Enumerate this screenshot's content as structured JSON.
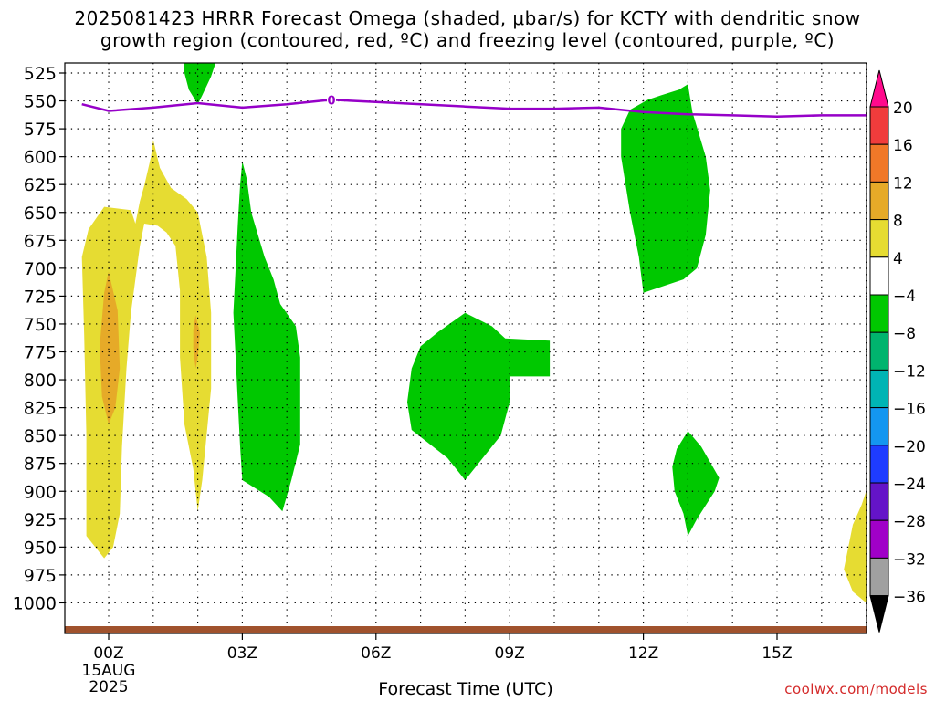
{
  "title_line1": "2025081423 HRRR Forecast Omega (shaded, μbar/s) for KCTY with dendritic snow",
  "title_line2": "growth region (contoured, red, ºC) and freezing level (contoured, purple, ºC)",
  "credit": "coolwx.com/models",
  "chart_data": {
    "type": "heatmap",
    "title": "2025081423 HRRR Forecast Omega (shaded, μbar/s) for KCTY with dendritic snow growth region (contoured, red, ºC) and freezing level (contoured, purple, ºC)",
    "xlabel": "Forecast Time (UTC)",
    "ylabel": "",
    "x_unit": "forecast hour from 00Z 15AUG2025",
    "x_range": [
      -0.6,
      17
    ],
    "y_range": [
      515,
      1010
    ],
    "y_scale": "pressure (inverted)",
    "grid": true,
    "x_ticks": [
      {
        "hour": 0,
        "label": "00Z",
        "sub1": "15AUG",
        "sub2": "2025"
      },
      {
        "hour": 3,
        "label": "03Z"
      },
      {
        "hour": 6,
        "label": "06Z"
      },
      {
        "hour": 9,
        "label": "09Z"
      },
      {
        "hour": 12,
        "label": "12Z"
      },
      {
        "hour": 15,
        "label": "15Z"
      }
    ],
    "y_ticks": [
      525,
      550,
      575,
      600,
      625,
      650,
      675,
      700,
      725,
      750,
      775,
      800,
      825,
      850,
      875,
      900,
      925,
      950,
      975,
      1000
    ],
    "colorbar": {
      "labels": [
        "20",
        "16",
        "12",
        "8",
        "4",
        "−4",
        "−8",
        "−12",
        "−16",
        "−20",
        "−24",
        "−28",
        "−32",
        "−36"
      ],
      "colors": [
        "#ff0a8c",
        "#f03c3c",
        "#f07828",
        "#e6aa28",
        "#e6dc32",
        "#ffffff",
        "#00c800",
        "#00b46e",
        "#00b4b4",
        "#1496f0",
        "#1e3cff",
        "#6414c8",
        "#a000c8",
        "#a0a0a0",
        "#000000"
      ]
    },
    "freezing_level": {
      "label": "0",
      "color": "#9600c8",
      "points": [
        [
          -0.6,
          553
        ],
        [
          0,
          559
        ],
        [
          1,
          556
        ],
        [
          2,
          552
        ],
        [
          3,
          556
        ],
        [
          4,
          553
        ],
        [
          5,
          549
        ],
        [
          6,
          551
        ],
        [
          8,
          555
        ],
        [
          9,
          557
        ],
        [
          10,
          557
        ],
        [
          11,
          556
        ],
        [
          12,
          560
        ],
        [
          13,
          562
        ],
        [
          14,
          563
        ],
        [
          15,
          564
        ],
        [
          16,
          563
        ],
        [
          17,
          563
        ]
      ]
    },
    "surface_color": "#a0522d",
    "regions": [
      {
        "name": "ascent-upper-left",
        "color": "#00c800",
        "points": [
          [
            1.7,
            515
          ],
          [
            2.4,
            515
          ],
          [
            2.3,
            528
          ],
          [
            2.1,
            545
          ],
          [
            2.0,
            553
          ],
          [
            1.8,
            540
          ],
          [
            1.7,
            525
          ]
        ]
      },
      {
        "name": "ascent-column-03z",
        "color": "#00c800",
        "points": [
          [
            3.0,
            604
          ],
          [
            3.1,
            620
          ],
          [
            3.2,
            650
          ],
          [
            3.5,
            690
          ],
          [
            3.7,
            710
          ],
          [
            3.85,
            732
          ],
          [
            4.2,
            752
          ],
          [
            4.3,
            780
          ],
          [
            4.3,
            858
          ],
          [
            4.1,
            890
          ],
          [
            3.9,
            918
          ],
          [
            3.6,
            905
          ],
          [
            3.0,
            890
          ],
          [
            2.95,
            860
          ],
          [
            2.9,
            820
          ],
          [
            2.85,
            780
          ],
          [
            2.8,
            740
          ],
          [
            2.85,
            700
          ],
          [
            2.9,
            660
          ],
          [
            2.95,
            625
          ]
        ]
      },
      {
        "name": "ascent-mid",
        "color": "#00c800",
        "points": [
          [
            7.4,
            757
          ],
          [
            8.0,
            740
          ],
          [
            8.6,
            752
          ],
          [
            8.9,
            763
          ],
          [
            9.9,
            765
          ],
          [
            9.9,
            797
          ],
          [
            9.0,
            797
          ],
          [
            9.0,
            820
          ],
          [
            8.8,
            850
          ],
          [
            8.0,
            890
          ],
          [
            7.6,
            870
          ],
          [
            6.8,
            845
          ],
          [
            6.7,
            820
          ],
          [
            6.8,
            790
          ],
          [
            7.0,
            770
          ]
        ]
      },
      {
        "name": "ascent-upper-right",
        "color": "#00c800",
        "points": [
          [
            12.8,
            540
          ],
          [
            13.0,
            535
          ],
          [
            13.1,
            560
          ],
          [
            13.4,
            600
          ],
          [
            13.5,
            630
          ],
          [
            13.4,
            670
          ],
          [
            13.2,
            700
          ],
          [
            12.9,
            710
          ],
          [
            12.0,
            722
          ],
          [
            11.9,
            690
          ],
          [
            11.7,
            650
          ],
          [
            11.5,
            600
          ],
          [
            11.5,
            575
          ],
          [
            11.7,
            558
          ],
          [
            12.1,
            549
          ],
          [
            12.4,
            545
          ]
        ]
      },
      {
        "name": "ascent-lower-right",
        "color": "#00c800",
        "points": [
          [
            13.0,
            846
          ],
          [
            13.3,
            860
          ],
          [
            13.7,
            888
          ],
          [
            13.6,
            900
          ],
          [
            13.2,
            925
          ],
          [
            13.0,
            940
          ],
          [
            12.9,
            920
          ],
          [
            12.7,
            900
          ],
          [
            12.65,
            878
          ],
          [
            12.75,
            862
          ]
        ]
      },
      {
        "name": "descent-left-arch",
        "color": "#e6dc32",
        "points": [
          [
            -0.6,
            690
          ],
          [
            -0.45,
            665
          ],
          [
            -0.1,
            645
          ],
          [
            0.5,
            648
          ],
          [
            0.6,
            660
          ],
          [
            0.7,
            640
          ],
          [
            0.8,
            626
          ],
          [
            0.95,
            600
          ],
          [
            1.0,
            585
          ],
          [
            1.15,
            610
          ],
          [
            1.4,
            628
          ],
          [
            1.75,
            638
          ],
          [
            2.0,
            650
          ],
          [
            2.2,
            690
          ],
          [
            2.3,
            740
          ],
          [
            2.3,
            808
          ],
          [
            2.1,
            890
          ],
          [
            2.0,
            918
          ],
          [
            1.9,
            880
          ],
          [
            1.7,
            840
          ],
          [
            1.6,
            780
          ],
          [
            1.6,
            720
          ],
          [
            1.5,
            680
          ],
          [
            1.3,
            668
          ],
          [
            1.1,
            662
          ],
          [
            0.8,
            660
          ],
          [
            0.7,
            680
          ],
          [
            0.5,
            740
          ],
          [
            0.4,
            790
          ],
          [
            0.3,
            860
          ],
          [
            0.25,
            920
          ],
          [
            0.1,
            950
          ],
          [
            -0.1,
            960
          ],
          [
            -0.5,
            940
          ],
          [
            -0.5,
            850
          ],
          [
            -0.55,
            760
          ]
        ]
      },
      {
        "name": "descent-left-core",
        "color": "#e6aa28",
        "points": [
          [
            0.0,
            703
          ],
          [
            0.2,
            738
          ],
          [
            0.25,
            790
          ],
          [
            0.15,
            825
          ],
          [
            0.0,
            840
          ],
          [
            -0.15,
            815
          ],
          [
            -0.2,
            770
          ],
          [
            -0.1,
            722
          ]
        ]
      },
      {
        "name": "descent-mid-core",
        "color": "#e6aa28",
        "points": [
          [
            1.95,
            742
          ],
          [
            2.05,
            758
          ],
          [
            2.0,
            780
          ],
          [
            1.95,
            790
          ],
          [
            1.9,
            772
          ],
          [
            1.9,
            755
          ]
        ]
      },
      {
        "name": "descent-right-edge",
        "color": "#e6dc32",
        "points": [
          [
            17.0,
            900
          ],
          [
            17.0,
            1000
          ],
          [
            16.7,
            990
          ],
          [
            16.5,
            970
          ],
          [
            16.6,
            950
          ],
          [
            16.7,
            930
          ],
          [
            16.9,
            912
          ]
        ]
      }
    ]
  }
}
